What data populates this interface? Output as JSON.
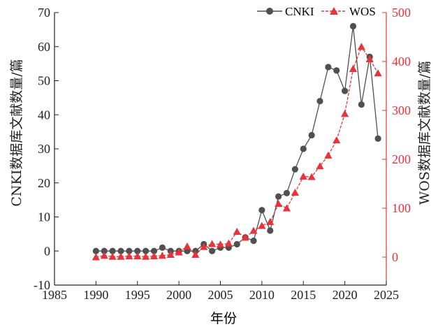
{
  "chart_data": {
    "type": "line",
    "title": "",
    "xlabel": "年份",
    "ylabel_left": "CNKI数据库文献数量/篇",
    "ylabel_right": "WOS数据库文献数量/篇",
    "xlim": [
      1985,
      2025
    ],
    "ylim_left": [
      -10,
      70
    ],
    "ylim_right": [
      -57.14,
      500
    ],
    "xticks": [
      "1985",
      "1990",
      "1995",
      "2000",
      "2005",
      "2010",
      "2015",
      "2020",
      "2025"
    ],
    "yticks_left": [
      "-10",
      "0",
      "10",
      "20",
      "30",
      "40",
      "50",
      "60",
      "70"
    ],
    "yticks_right": [
      "0",
      "100",
      "200",
      "300",
      "400",
      "500"
    ],
    "legend_position": "top-right",
    "series": [
      {
        "name": "CNKI",
        "axis": "left",
        "marker": "circle",
        "color": "#505050",
        "x": [
          1990,
          1991,
          1992,
          1993,
          1994,
          1995,
          1996,
          1997,
          1998,
          1999,
          2000,
          2001,
          2002,
          2003,
          2004,
          2005,
          2006,
          2007,
          2008,
          2009,
          2010,
          2011,
          2012,
          2013,
          2014,
          2015,
          2016,
          2017,
          2018,
          2019,
          2020,
          2021,
          2022,
          2023,
          2024
        ],
        "values": [
          0,
          0,
          0,
          0,
          0,
          0,
          0,
          0,
          1,
          0,
          0,
          0,
          0,
          2,
          0,
          1,
          1,
          2,
          4,
          3,
          12,
          6,
          16,
          17,
          24,
          30,
          34,
          44,
          54,
          53,
          47,
          66,
          43,
          57,
          33
        ]
      },
      {
        "name": "WOS",
        "axis": "right",
        "marker": "triangle",
        "color": "#e8323c",
        "x": [
          1990,
          1991,
          1992,
          1993,
          1994,
          1995,
          1996,
          1997,
          1998,
          1999,
          2000,
          2001,
          2002,
          2003,
          2004,
          2005,
          2006,
          2007,
          2008,
          2009,
          2010,
          2011,
          2012,
          2013,
          2014,
          2015,
          2016,
          2017,
          2018,
          2019,
          2020,
          2021,
          2022,
          2023,
          2024
        ],
        "values": [
          0,
          3,
          1,
          1,
          2,
          2,
          1,
          2,
          3,
          5,
          10,
          22,
          5,
          21,
          27,
          26,
          28,
          52,
          40,
          54,
          64,
          72,
          109,
          100,
          132,
          165,
          164,
          186,
          208,
          239,
          293,
          385,
          430,
          405,
          376
        ]
      }
    ]
  }
}
